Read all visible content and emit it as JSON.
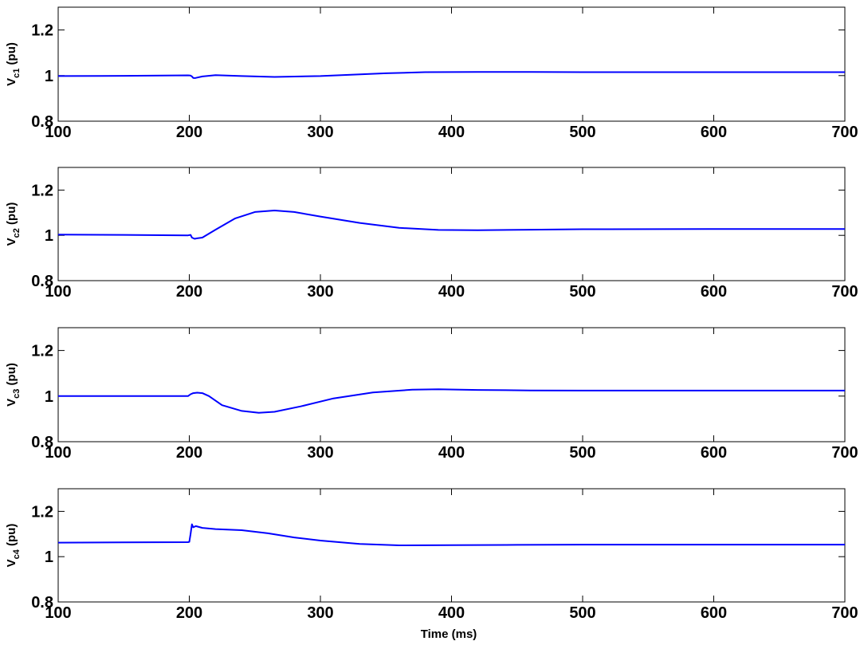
{
  "chart_data": [
    {
      "type": "line",
      "ylabel": "Vc1 (pu)",
      "ylabel_main": "V",
      "ylabel_sub": "c1",
      "ylabel_unit": " (pu)",
      "xlabel": "",
      "xlim": [
        100,
        700
      ],
      "ylim": [
        0.8,
        1.3
      ],
      "xticks": [
        "100",
        "200",
        "300",
        "400",
        "500",
        "600",
        "700"
      ],
      "yticks": [
        "0.8",
        "1",
        "1.2"
      ],
      "color": "#0000ff",
      "x": [
        100,
        150,
        199,
        201,
        202,
        203,
        204,
        205,
        210,
        220,
        240,
        265,
        300,
        350,
        380,
        420,
        460,
        500,
        550,
        600,
        650,
        700
      ],
      "y": [
        0.998,
        0.999,
        1.001,
        1.0,
        0.996,
        0.99,
        0.989,
        0.99,
        0.996,
        1.002,
        0.998,
        0.994,
        0.998,
        1.01,
        1.015,
        1.016,
        1.016,
        1.015,
        1.015,
        1.015,
        1.015,
        1.015
      ]
    },
    {
      "type": "line",
      "ylabel": "Vc2 (pu)",
      "ylabel_main": "V",
      "ylabel_sub": "c2",
      "ylabel_unit": " (pu)",
      "xlabel": "",
      "xlim": [
        100,
        700
      ],
      "ylim": [
        0.8,
        1.3
      ],
      "xticks": [
        "100",
        "200",
        "300",
        "400",
        "500",
        "600",
        "700"
      ],
      "yticks": [
        "0.8",
        "1",
        "1.2"
      ],
      "color": "#0000ff",
      "x": [
        100,
        150,
        199,
        201,
        202,
        204,
        206,
        210,
        220,
        235,
        250,
        265,
        280,
        300,
        330,
        360,
        390,
        420,
        460,
        500,
        600,
        700
      ],
      "y": [
        1.003,
        1.002,
        1.0,
        1.002,
        0.99,
        0.985,
        0.987,
        0.99,
        1.025,
        1.075,
        1.103,
        1.11,
        1.103,
        1.083,
        1.055,
        1.033,
        1.024,
        1.023,
        1.025,
        1.027,
        1.028,
        1.028
      ]
    },
    {
      "type": "line",
      "ylabel": "Vc3 (pu)",
      "ylabel_main": "V",
      "ylabel_sub": "c3",
      "ylabel_unit": " (pu)",
      "xlabel": "",
      "xlim": [
        100,
        700
      ],
      "ylim": [
        0.8,
        1.3
      ],
      "xticks": [
        "100",
        "200",
        "300",
        "400",
        "500",
        "600",
        "700"
      ],
      "yticks": [
        "0.8",
        "1",
        "1.2"
      ],
      "color": "#0000ff",
      "x": [
        100,
        150,
        199,
        201,
        203,
        206,
        210,
        215,
        225,
        240,
        253,
        265,
        285,
        310,
        340,
        370,
        390,
        420,
        460,
        500,
        600,
        700
      ],
      "y": [
        1.0,
        1.0,
        1.0,
        1.008,
        1.013,
        1.015,
        1.013,
        1.0,
        0.96,
        0.935,
        0.927,
        0.931,
        0.955,
        0.99,
        1.016,
        1.028,
        1.03,
        1.027,
        1.025,
        1.024,
        1.024,
        1.024
      ]
    },
    {
      "type": "line",
      "ylabel": "Vc4 (pu)",
      "ylabel_main": "V",
      "ylabel_sub": "c4",
      "ylabel_unit": " (pu)",
      "xlabel": "Time (ms)",
      "xlim": [
        100,
        700
      ],
      "ylim": [
        0.8,
        1.3
      ],
      "xticks": [
        "100",
        "200",
        "300",
        "400",
        "500",
        "600",
        "700"
      ],
      "yticks": [
        "0.8",
        "1",
        "1.2"
      ],
      "color": "#0000ff",
      "x": [
        100,
        150,
        199,
        200,
        201,
        202,
        203,
        205,
        210,
        220,
        240,
        260,
        280,
        300,
        330,
        360,
        400,
        450,
        500,
        600,
        700
      ],
      "y": [
        1.062,
        1.063,
        1.064,
        1.065,
        1.1,
        1.143,
        1.13,
        1.135,
        1.127,
        1.122,
        1.117,
        1.103,
        1.085,
        1.071,
        1.056,
        1.05,
        1.051,
        1.052,
        1.053,
        1.053,
        1.053
      ]
    }
  ]
}
